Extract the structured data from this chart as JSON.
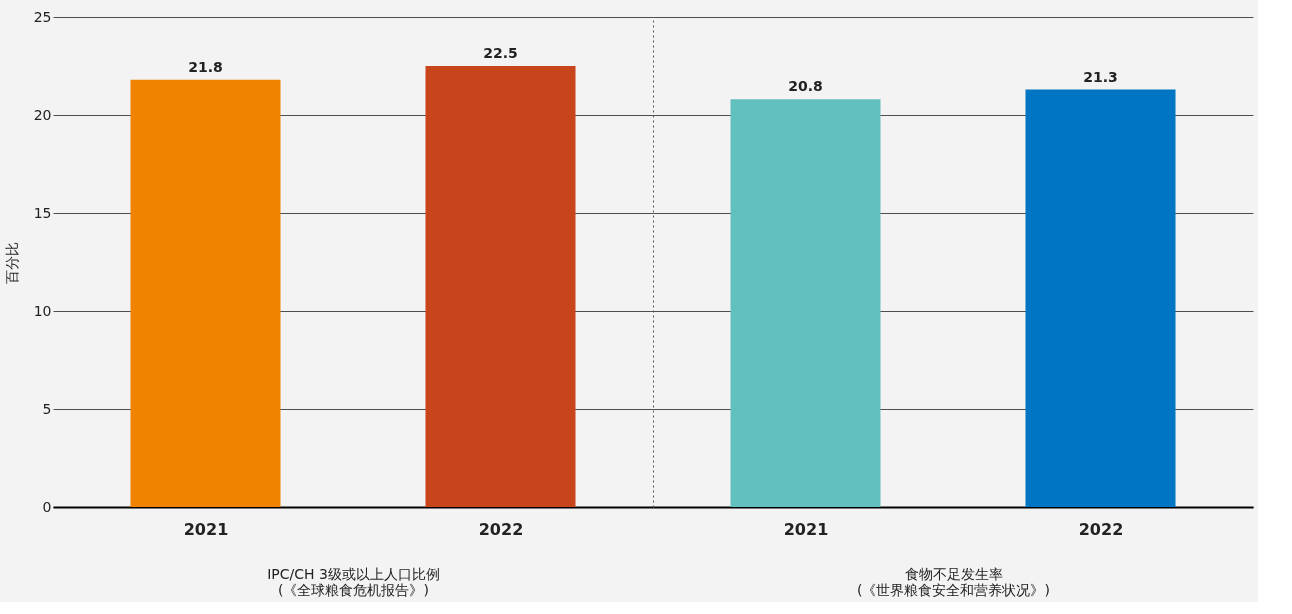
{
  "chart_data": [
    {
      "type": "bar",
      "categories": [
        "2021",
        "2022"
      ],
      "values": [
        21.8,
        22.5
      ],
      "colors": [
        "#f08400",
        "#c8441b"
      ],
      "ylabel": "百分比",
      "xlabel": "IPC/CH 3级或以上人口比例\n(《全球粮食危机报告》)",
      "ylim": [
        0,
        25
      ],
      "yticks": [
        0,
        5,
        10,
        15,
        20,
        25
      ],
      "grid": "y",
      "data_labels": true
    },
    {
      "type": "bar",
      "categories": [
        "2021",
        "2022"
      ],
      "values": [
        20.8,
        21.3
      ],
      "colors": [
        "#62c0be",
        "#0075c4"
      ],
      "xlabel": "食物不足发生率\n(《世界粮食安全和营养状况》)",
      "ylim": [
        0,
        25
      ],
      "yticks": [
        0,
        5,
        10,
        15,
        20,
        25
      ],
      "grid": "y",
      "data_labels": true,
      "tick_labels": "x"
    }
  ]
}
